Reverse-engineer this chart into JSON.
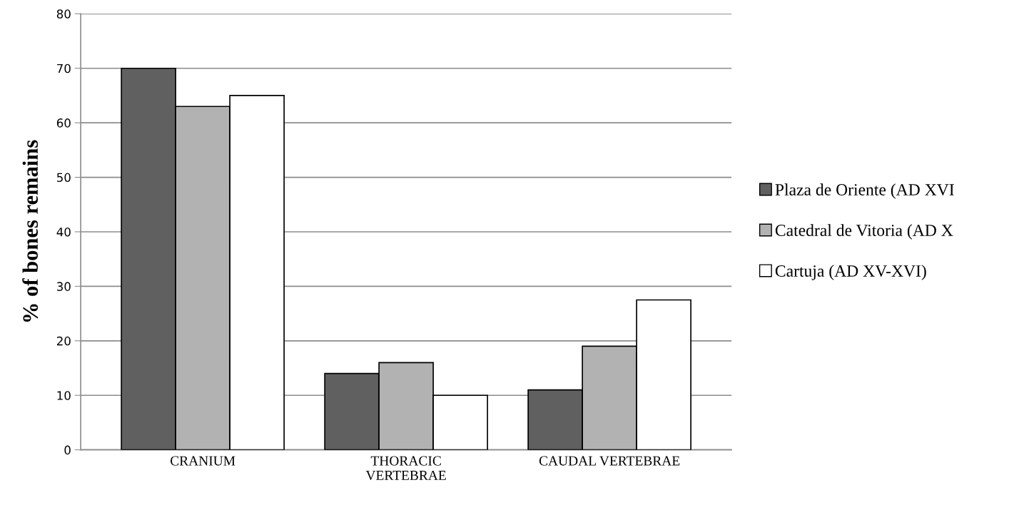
{
  "chart_data": {
    "type": "bar",
    "ylabel": "% of bones remains",
    "categories": [
      "CRANIUM",
      "THORACIC\nVERTEBRAE",
      "CAUDAL VERTEBRAE"
    ],
    "series": [
      {
        "name": "Plaza de Oriente (AD XVI",
        "color": "#606060",
        "values": [
          70,
          14,
          11
        ]
      },
      {
        "name": "Catedral de Vitoria (AD X",
        "color": "#b2b2b2",
        "values": [
          63,
          16,
          19
        ]
      },
      {
        "name": "Cartuja (AD XV-XVI)",
        "color": "#ffffff",
        "values": [
          65,
          10,
          27.5
        ]
      }
    ],
    "ylim": [
      0,
      80
    ],
    "yticks": [
      0,
      10,
      20,
      30,
      40,
      50,
      60,
      70,
      80
    ],
    "grid": "y",
    "legend": "right"
  }
}
